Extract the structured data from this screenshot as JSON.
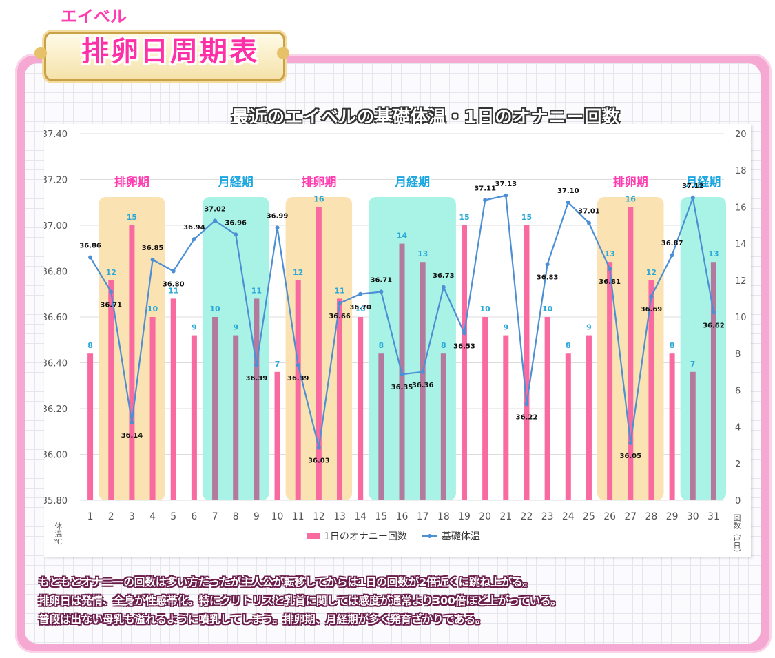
{
  "brand": "エイベル",
  "badge_title": "排卵日周期表",
  "chart_title": "最近のエイベルの基礎体温・1日のオナニー回数",
  "left_axis_unit": "体温℃",
  "right_axis_unit": "回数（1日）",
  "legend": {
    "bars": "1日のオナニー回数",
    "line": "基礎体温"
  },
  "description": [
    "もともとオナニーの回数は多い方だったが主人公が転移してからは1日の回数が2倍近くに跳ね上がる。",
    "排卵日は発情、全身が性感帯化。特にクリトリスと乳首に関しては感度が通常より300倍ほど上がっている。",
    "普段は出ない母乳も溢れるように噴乳してしまう。排卵期、月経期が多く発育ざかりである。"
  ],
  "colors": {
    "bar": "#f86aa0",
    "bar_in_menses": "#b47a9e",
    "line": "#4c8fd4",
    "count_label": "#2aa8d8",
    "ovulation_band": "#fbe2b3",
    "menses_band": "#a9f2e6",
    "ovulation_label": "#ff3db0",
    "menses_label": "#1ca6e0"
  },
  "chart_data": {
    "type": "bar",
    "title": "最近のエイベルの基礎体温・1日のオナニー回数",
    "x": [
      "1",
      "2",
      "3",
      "4",
      "5",
      "6",
      "7",
      "8",
      "9",
      "10",
      "11",
      "12",
      "13",
      "14",
      "15",
      "16",
      "17",
      "18",
      "19",
      "20",
      "21",
      "22",
      "23",
      "24",
      "25",
      "26",
      "27",
      "28",
      "29",
      "30",
      "31"
    ],
    "ylim_left": [
      35.8,
      37.4
    ],
    "left_ticks": [
      "35.80",
      "36.00",
      "36.20",
      "36.40",
      "36.60",
      "36.80",
      "37.00",
      "37.20",
      "37.40"
    ],
    "ylim_right": [
      0,
      20
    ],
    "right_ticks": [
      "0",
      "2",
      "4",
      "6",
      "8",
      "10",
      "12",
      "14",
      "16",
      "18",
      "20"
    ],
    "ylabel_left": "体温℃",
    "ylabel_right": "回数（1日）",
    "series": [
      {
        "name": "1日のオナニー回数",
        "type": "bar",
        "axis": "right",
        "values": [
          8,
          12,
          15,
          10,
          11,
          9,
          10,
          9,
          11,
          7,
          12,
          16,
          11,
          10,
          8,
          14,
          13,
          8,
          15,
          10,
          9,
          15,
          10,
          8,
          9,
          13,
          16,
          12,
          8,
          7,
          13
        ]
      },
      {
        "name": "基礎体温",
        "type": "line",
        "axis": "left",
        "values": [
          36.86,
          36.71,
          36.14,
          36.85,
          36.8,
          36.94,
          37.02,
          36.96,
          36.39,
          36.99,
          36.39,
          36.03,
          36.66,
          36.7,
          36.71,
          36.35,
          36.36,
          36.73,
          36.53,
          37.11,
          37.13,
          36.22,
          36.83,
          37.1,
          37.01,
          36.81,
          36.05,
          36.69,
          36.87,
          37.12,
          36.62
        ]
      }
    ],
    "phases": [
      {
        "label": "排卵期",
        "kind": "ovulation",
        "start": 2,
        "end": 4
      },
      {
        "label": "月経期",
        "kind": "menses",
        "start": 7,
        "end": 9
      },
      {
        "label": "排卵期",
        "kind": "ovulation",
        "start": 11,
        "end": 13
      },
      {
        "label": "月経期",
        "kind": "menses",
        "start": 15,
        "end": 18
      },
      {
        "label": "排卵期",
        "kind": "ovulation",
        "start": 26,
        "end": 28
      },
      {
        "label": "月経期",
        "kind": "menses",
        "start": 30,
        "end": 31
      }
    ],
    "legend": "bottom",
    "grid": true
  }
}
